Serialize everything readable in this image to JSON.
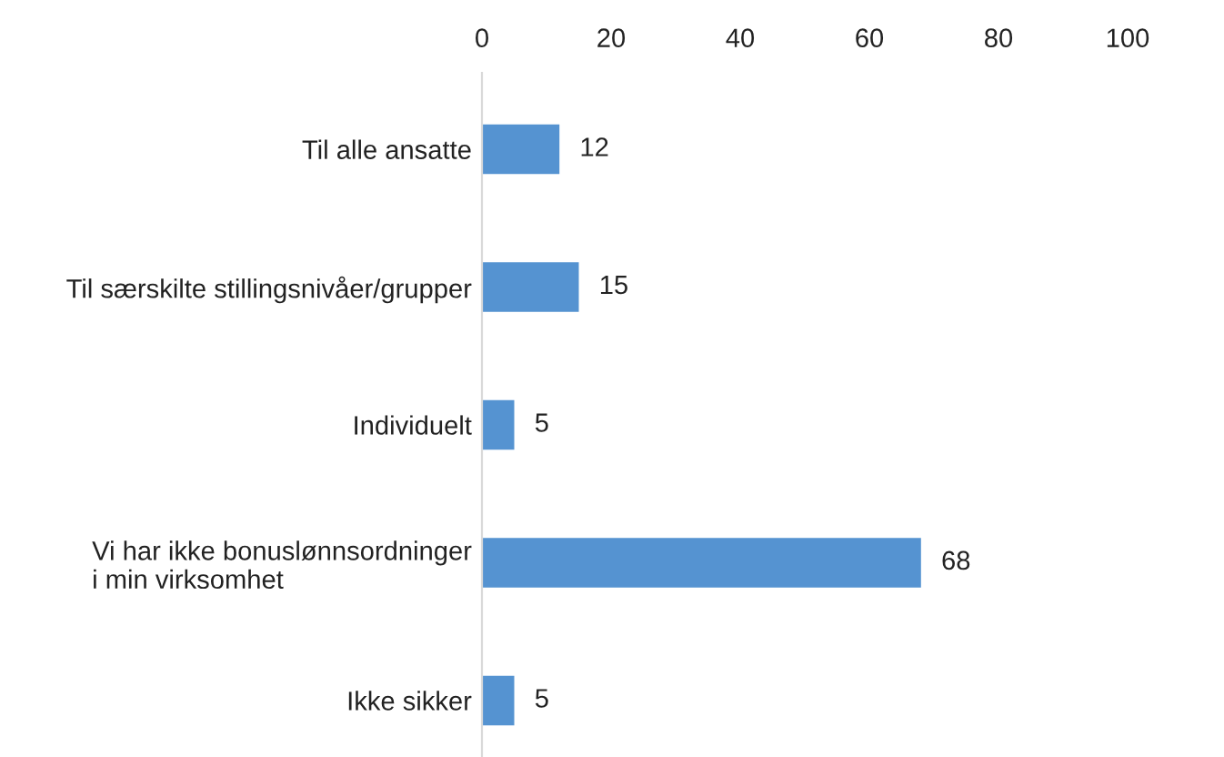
{
  "chart_data": {
    "type": "bar",
    "orientation": "horizontal",
    "categories": [
      "Til alle ansatte",
      "Til særskilte stillingsnivåer/grupper",
      "Individuelt",
      "Vi har ikke bonuslønnsordninger\ni min virksomhet",
      "Ikke sikker"
    ],
    "values": [
      12,
      15,
      5,
      68,
      5
    ],
    "color": "#5593d1",
    "xlim": [
      0,
      100
    ],
    "xticks": [
      0,
      20,
      40,
      60,
      80,
      100
    ],
    "grid": false,
    "data_labels": true
  }
}
